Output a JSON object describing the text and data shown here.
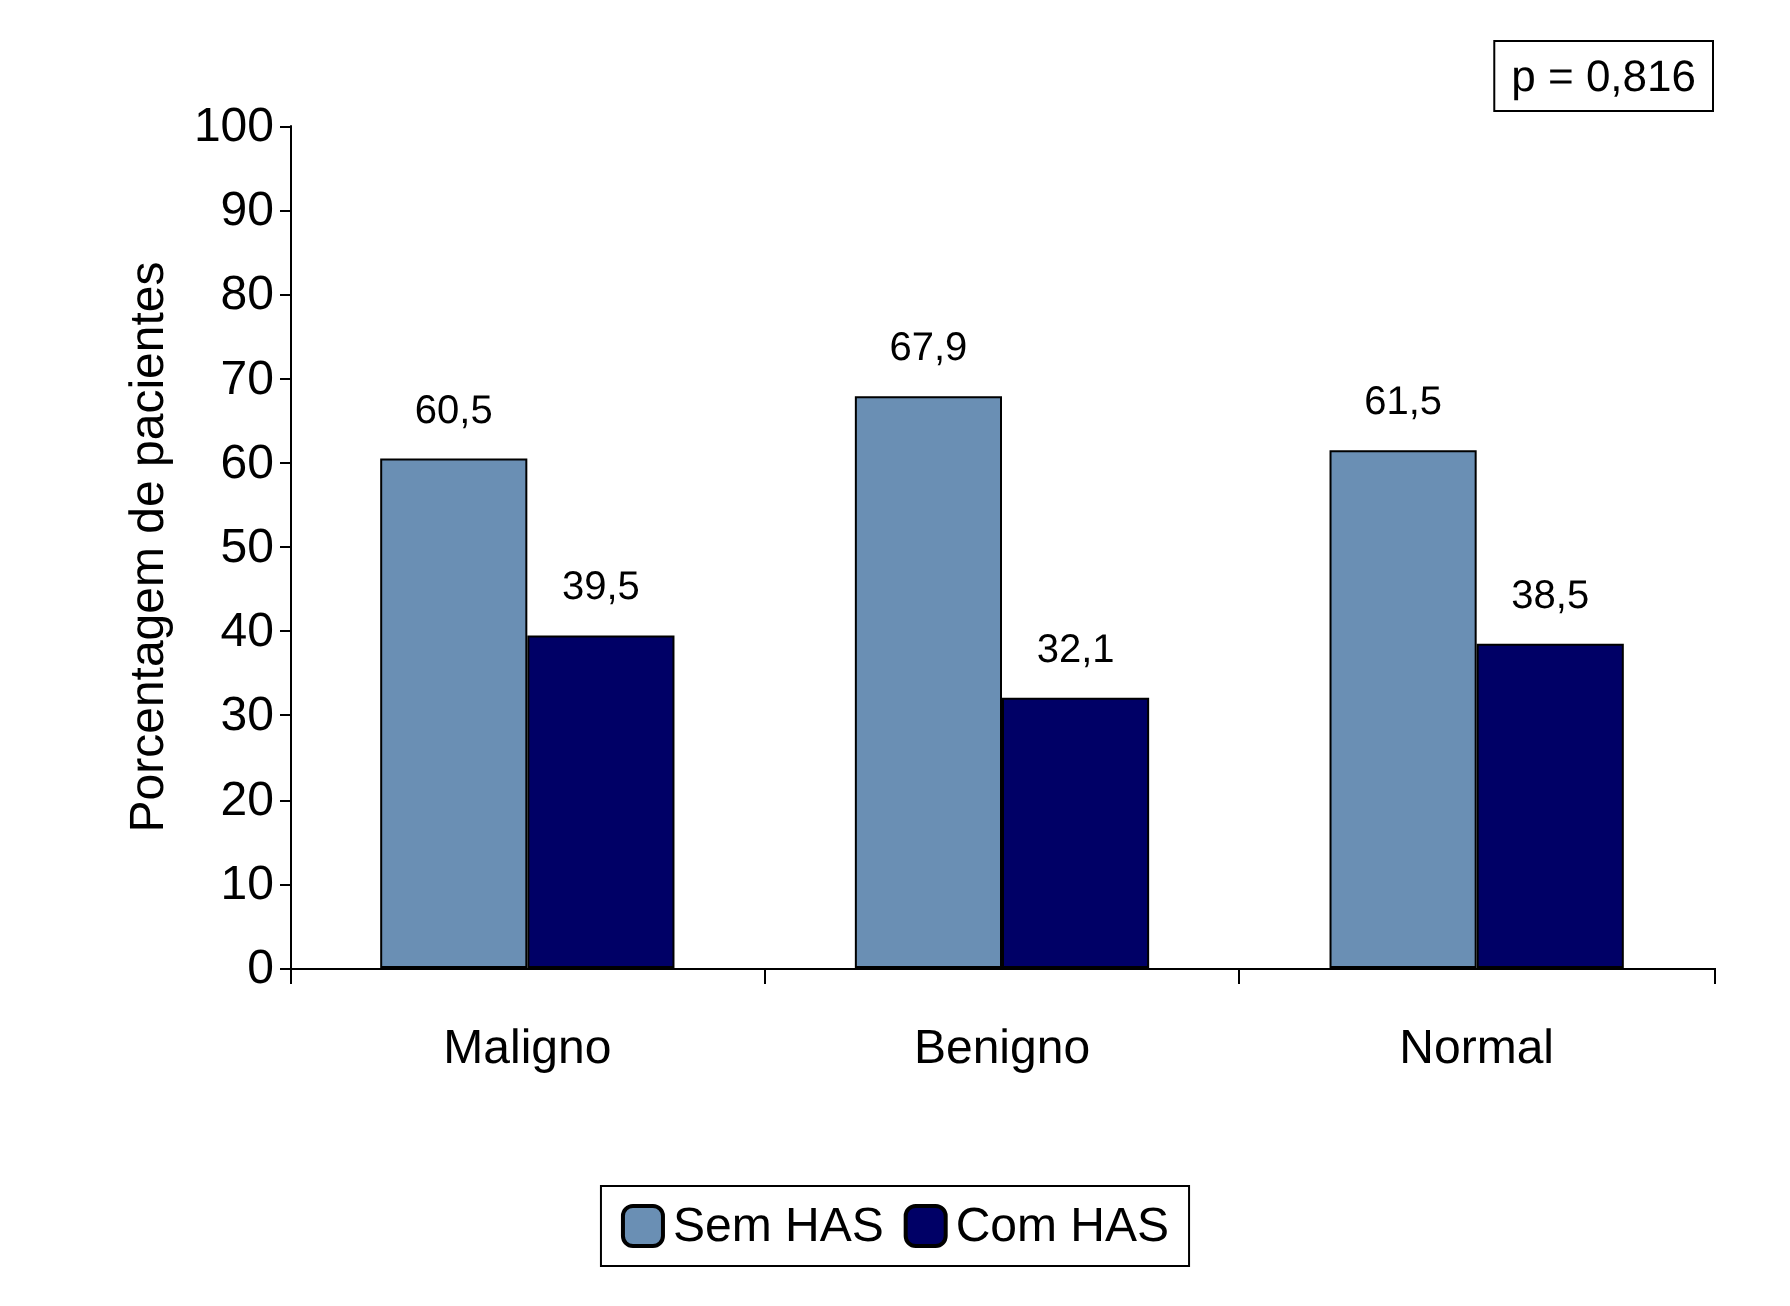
{
  "chart_data": {
    "type": "bar",
    "ylabel": "Porcentagem de pacientes",
    "categories": [
      "Maligno",
      "Benigno",
      "Normal"
    ],
    "series": [
      {
        "name": "Sem HAS",
        "color": "#6a8fb4",
        "values": [
          60.5,
          67.9,
          61.5
        ],
        "value_labels": [
          "60,5",
          "67,9",
          "61,5"
        ]
      },
      {
        "name": "Com HAS",
        "color": "#000066",
        "values": [
          39.5,
          32.1,
          38.5
        ],
        "value_labels": [
          "39,5",
          "32,1",
          "38,5"
        ]
      }
    ],
    "ylim": [
      0,
      100
    ],
    "yticks": [
      0,
      10,
      20,
      30,
      40,
      50,
      60,
      70,
      80,
      90,
      100
    ],
    "grid": false,
    "legend": "bottom",
    "annotations": [
      "p = 0,816"
    ]
  }
}
